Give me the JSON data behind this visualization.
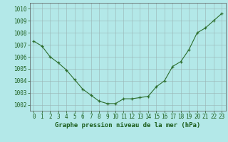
{
  "x": [
    0,
    1,
    2,
    3,
    4,
    5,
    6,
    7,
    8,
    9,
    10,
    11,
    12,
    13,
    14,
    15,
    16,
    17,
    18,
    19,
    20,
    21,
    22,
    23
  ],
  "y": [
    1007.3,
    1006.9,
    1006.0,
    1005.5,
    1004.9,
    1004.1,
    1003.3,
    1002.8,
    1002.3,
    1002.1,
    1002.1,
    1002.5,
    1002.5,
    1002.6,
    1002.7,
    1003.5,
    1004.0,
    1005.2,
    1005.6,
    1006.6,
    1008.0,
    1008.4,
    1009.0,
    1009.6
  ],
  "line_color": "#2d6e2d",
  "marker": "+",
  "background_color": "#b3e8e8",
  "grid_color": "#99b3b3",
  "xlabel": "Graphe pression niveau de la mer (hPa)",
  "xlabel_color": "#1a5c1a",
  "tick_label_color": "#1a5c1a",
  "ylim": [
    1001.5,
    1010.5
  ],
  "xlim": [
    -0.5,
    23.5
  ],
  "yticks": [
    1002,
    1003,
    1004,
    1005,
    1006,
    1007,
    1008,
    1009,
    1010
  ],
  "xticks": [
    0,
    1,
    2,
    3,
    4,
    5,
    6,
    7,
    8,
    9,
    10,
    11,
    12,
    13,
    14,
    15,
    16,
    17,
    18,
    19,
    20,
    21,
    22,
    23
  ],
  "label_fontsize": 5.5,
  "xlabel_fontsize": 6.5
}
